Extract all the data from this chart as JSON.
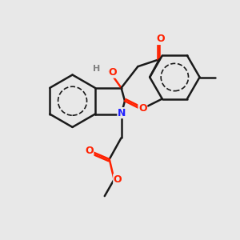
{
  "bg_color": "#e8e8e8",
  "bond_color": "#1a1a1a",
  "bond_width": 1.8,
  "atom_colors": {
    "O": "#ff2000",
    "N": "#2020ff",
    "H": "#808080",
    "C": "#1a1a1a"
  },
  "font_size_atom": 9,
  "font_size_label": 8
}
